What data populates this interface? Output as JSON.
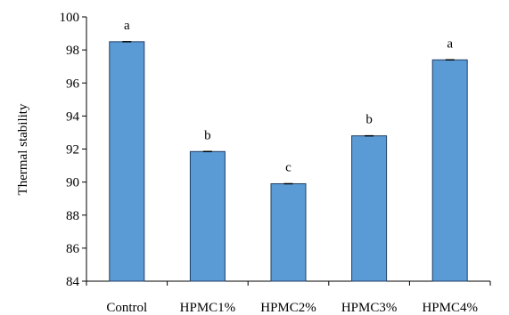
{
  "chart_data": {
    "type": "bar",
    "categories": [
      "Control",
      "HPMC1%",
      "HPMC2%",
      "HPMC3%",
      "HPMC4%"
    ],
    "values": [
      98.5,
      91.85,
      89.9,
      92.8,
      97.4
    ],
    "significance_labels": [
      "a",
      "b",
      "c",
      "b",
      "a"
    ],
    "ylabel": "Thermal stability",
    "ylim": [
      84,
      100
    ],
    "yticks": [
      84,
      86,
      88,
      90,
      92,
      94,
      96,
      98,
      100
    ],
    "grid": false,
    "bar_color": "#5b9bd5",
    "bar_edge_color": "#1f3f66"
  }
}
